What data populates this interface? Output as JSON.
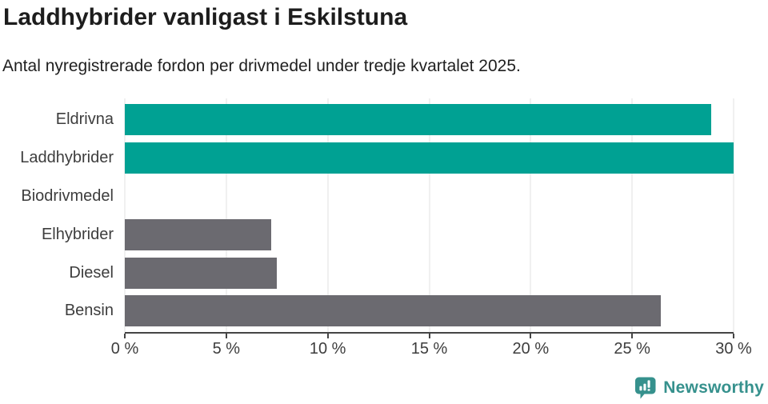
{
  "header": {
    "title": "Laddhybrider vanligast i Eskilstuna",
    "subtitle": "Antal nyregistrerade fordon per drivmedel under tredje kvartalet 2025."
  },
  "chart_data": {
    "type": "bar",
    "orientation": "horizontal",
    "title": "Laddhybrider vanligast i Eskilstuna",
    "subtitle": "Antal nyregistrerade fordon per drivmedel under tredje kvartalet 2025.",
    "categories": [
      "Eldrivna",
      "Laddhybrider",
      "Biodrivmedel",
      "Elhybrider",
      "Diesel",
      "Bensin"
    ],
    "values": [
      28.9,
      30,
      0,
      7.2,
      7.5,
      26.4
    ],
    "unit": "%",
    "xlim": [
      0,
      30
    ],
    "x_ticks": [
      0,
      5,
      10,
      15,
      20,
      25,
      30
    ],
    "x_tick_labels": [
      "0 %",
      "5 %",
      "10 %",
      "15 %",
      "20 %",
      "25 %",
      "30 %"
    ],
    "grid": "vertical-gridlines",
    "legend": "none",
    "bar_colors": [
      "#00a193",
      "#00a193",
      "#6b6a70",
      "#6b6a70",
      "#6b6a70",
      "#6b6a70"
    ],
    "highlight_color": "#00a193",
    "default_color": "#6b6a70",
    "gridline_color": "#e1e1e1",
    "axis_color": "#454545"
  },
  "footer": {
    "brand": "Newsworthy",
    "brand_color": "#36918d",
    "logo_icon": "bar-chart-speech-bubble"
  }
}
